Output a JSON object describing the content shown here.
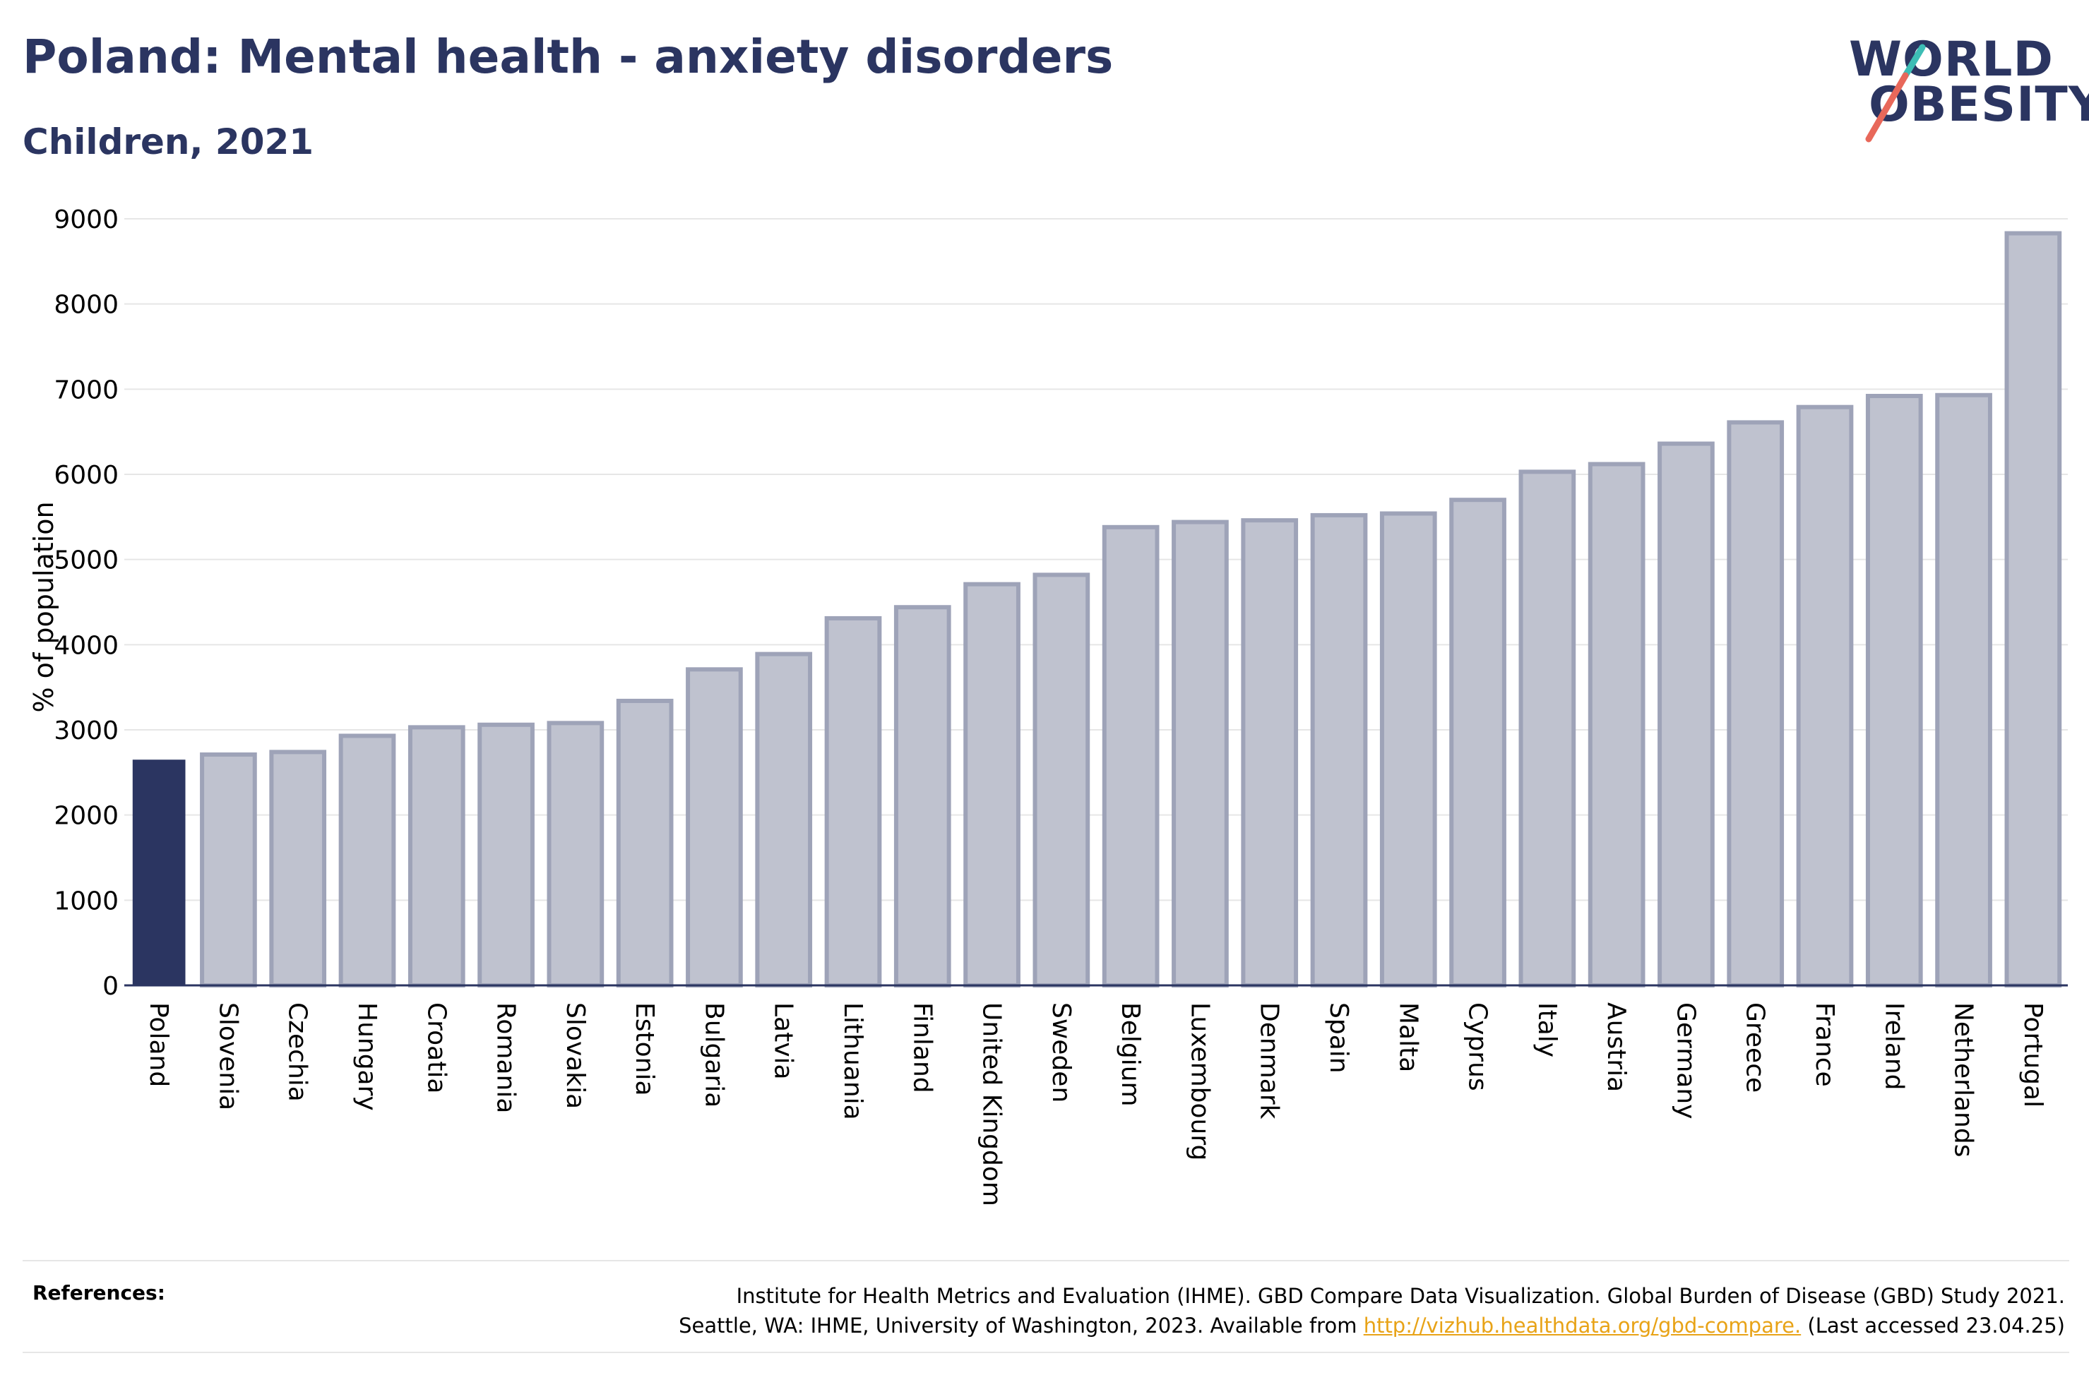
{
  "header": {
    "title": "Poland: Mental health - anxiety disorders",
    "subtitle": "Children, 2021"
  },
  "logo": {
    "line1": "WORLD",
    "line2": "OBESITY",
    "accent_colors": [
      "#3dbdb5",
      "#e8685a"
    ]
  },
  "chart_data": {
    "type": "bar",
    "ylabel": "% of population",
    "xlabel": "",
    "ylim": [
      0,
      9000
    ],
    "yticks": [
      0,
      1000,
      2000,
      3000,
      4000,
      5000,
      6000,
      7000,
      8000,
      9000
    ],
    "grid": true,
    "highlight": "Poland",
    "colors": {
      "highlight": "#2b3561",
      "bar": "#bfc2cf",
      "bar_edge": "#9ea3b8"
    },
    "categories": [
      "Poland",
      "Slovenia",
      "Czechia",
      "Hungary",
      "Croatia",
      "Romania",
      "Slovakia",
      "Estonia",
      "Bulgaria",
      "Latvia",
      "Lithuania",
      "Finland",
      "United Kingdom",
      "Sweden",
      "Belgium",
      "Luxembourg",
      "Denmark",
      "Spain",
      "Malta",
      "Cyprus",
      "Italy",
      "Austria",
      "Germany",
      "Greece",
      "France",
      "Ireland",
      "Netherlands",
      "Portugal"
    ],
    "values": [
      2650,
      2710,
      2740,
      2930,
      3030,
      3060,
      3080,
      3340,
      3710,
      3890,
      4310,
      4440,
      4710,
      4820,
      5380,
      5440,
      5460,
      5520,
      5540,
      5700,
      6030,
      6120,
      6360,
      6610,
      6790,
      6920,
      6930,
      8830
    ]
  },
  "references": {
    "label": "References:",
    "line1": "Institute for Health Metrics and Evaluation (IHME). GBD Compare Data Visualization. Global Burden of Disease (GBD) Study 2021.",
    "line2_prefix": "Seattle, WA: IHME, University of Washington, 2023. Available from ",
    "link": "http://vizhub.healthdata.org/gbd-compare.",
    "line2_suffix": " (Last accessed 23.04.25)"
  }
}
